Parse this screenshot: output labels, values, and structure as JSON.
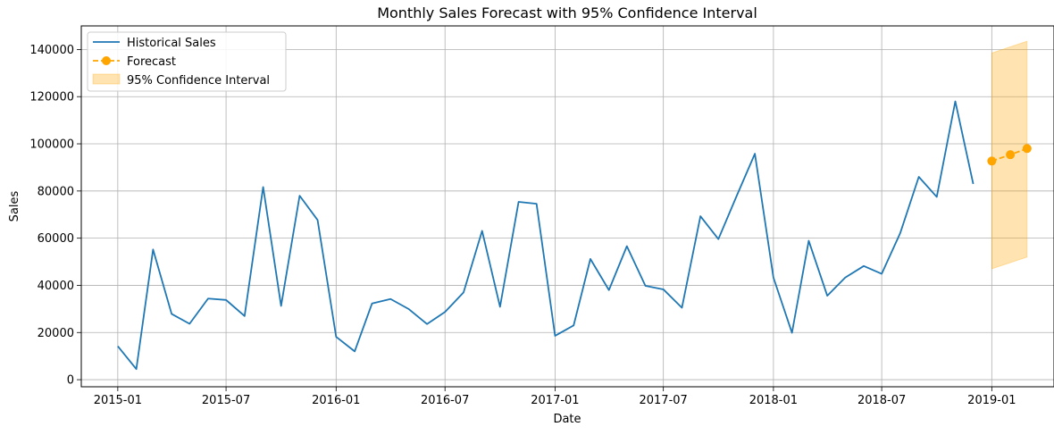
{
  "chart_data": {
    "type": "line",
    "title": "Monthly Sales Forecast with 95% Confidence Interval",
    "xlabel": "Date",
    "ylabel": "Sales",
    "xlim": [
      "2014-11-01",
      "2019-04-15"
    ],
    "ylim": [
      -3000,
      150000
    ],
    "grid": true,
    "legend_position": "top-left",
    "x_ticks": [
      "2015-01",
      "2015-07",
      "2016-01",
      "2016-07",
      "2017-01",
      "2017-07",
      "2018-01",
      "2018-07",
      "2019-01"
    ],
    "y_ticks": [
      0,
      20000,
      40000,
      60000,
      80000,
      100000,
      120000,
      140000
    ],
    "series": [
      {
        "name": "Historical Sales",
        "color": "#1f77b4",
        "x": [
          "2015-01",
          "2015-02",
          "2015-03",
          "2015-04",
          "2015-05",
          "2015-06",
          "2015-07",
          "2015-08",
          "2015-09",
          "2015-10",
          "2015-11",
          "2015-12",
          "2016-01",
          "2016-02",
          "2016-03",
          "2016-04",
          "2016-05",
          "2016-06",
          "2016-07",
          "2016-08",
          "2016-09",
          "2016-10",
          "2016-11",
          "2016-12",
          "2017-01",
          "2017-02",
          "2017-03",
          "2017-04",
          "2017-05",
          "2017-06",
          "2017-07",
          "2017-08",
          "2017-09",
          "2017-10",
          "2017-11",
          "2017-12",
          "2018-01",
          "2018-02",
          "2018-03",
          "2018-04",
          "2018-05",
          "2018-06",
          "2018-07",
          "2018-08",
          "2018-09",
          "2018-10",
          "2018-11",
          "2018-12"
        ],
        "y": [
          14200,
          4500,
          55200,
          27900,
          23700,
          34400,
          33800,
          27000,
          81700,
          31300,
          78000,
          67700,
          18200,
          12000,
          32300,
          34200,
          30000,
          23600,
          28700,
          37000,
          63100,
          30900,
          75400,
          74600,
          18600,
          23000,
          51200,
          38000,
          56600,
          39800,
          38300,
          30500,
          69300,
          59600,
          78200,
          95800,
          43300,
          19900,
          58900,
          35600,
          43300,
          48200,
          44900,
          62200,
          86000,
          77500,
          118000,
          83000
        ]
      },
      {
        "name": "Forecast",
        "color": "#ffa500",
        "x": [
          "2019-01",
          "2019-02",
          "2019-03"
        ],
        "y": [
          92700,
          95400,
          98000
        ]
      }
    ],
    "confidence_interval": {
      "name": "95% Confidence Interval",
      "color": "#ffa500",
      "x": [
        "2019-01",
        "2019-03"
      ],
      "lower": [
        47000,
        52000
      ],
      "upper": [
        138500,
        143500
      ]
    }
  }
}
